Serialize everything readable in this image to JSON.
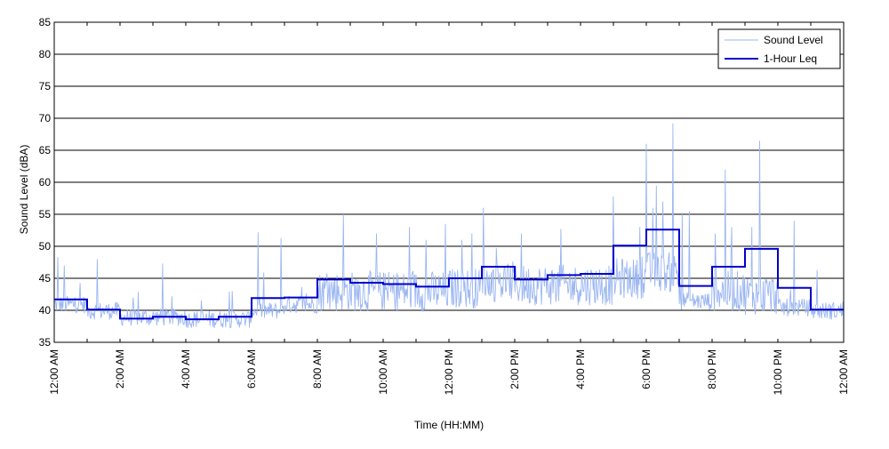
{
  "chart_data": {
    "type": "line",
    "xlabel": "Time (HH:MM)",
    "ylabel": "Sound Level (dBA)",
    "xlim": [
      0,
      24
    ],
    "ylim": [
      35,
      85
    ],
    "y_ticks": [
      35,
      40,
      45,
      50,
      55,
      60,
      65,
      70,
      75,
      80,
      85
    ],
    "x_tick_labels": [
      "12:00 AM",
      "2:00 AM",
      "4:00 AM",
      "6:00 AM",
      "8:00 AM",
      "10:00 AM",
      "12:00 PM",
      "2:00 PM",
      "4:00 PM",
      "6:00 PM",
      "8:00 PM",
      "10:00 PM",
      "12:00 AM"
    ],
    "grid": "horizontal",
    "legend_position": "top-right",
    "colors": {
      "sound_level": "#9bb6f2",
      "leq": "#0000cc",
      "grid": "#000000"
    },
    "series": [
      {
        "name": "Sound Level",
        "style": "thin-line",
        "hours": [
          0,
          1,
          2,
          3,
          4,
          5,
          6,
          7,
          8,
          9,
          10,
          11,
          12,
          13,
          14,
          15,
          16,
          17,
          18,
          19,
          20,
          21,
          22,
          23
        ],
        "baseline_dBA": [
          40.5,
          39.5,
          38.5,
          38.5,
          38.2,
          38.2,
          39.5,
          40.5,
          42,
          42,
          42,
          42,
          42.5,
          43.5,
          43,
          43,
          43,
          44,
          45,
          41,
          42,
          41.5,
          40,
          39.5
        ],
        "peak_dBA": [
          [
            0.1,
            48.3
          ],
          [
            0.3,
            47
          ],
          [
            1.3,
            48
          ],
          [
            2.4,
            42
          ],
          [
            3.3,
            47.3
          ],
          [
            5.4,
            43
          ],
          [
            6.2,
            52.2
          ],
          [
            6.9,
            51.3
          ],
          [
            8.8,
            55
          ],
          [
            9.8,
            52
          ],
          [
            10.8,
            53
          ],
          [
            11.3,
            51
          ],
          [
            11.9,
            53.5
          ],
          [
            12.4,
            51
          ],
          [
            12.7,
            52
          ],
          [
            13.05,
            56
          ],
          [
            14.2,
            52
          ],
          [
            15.4,
            52.7
          ],
          [
            17.0,
            57.8
          ],
          [
            17.8,
            53
          ],
          [
            18.0,
            66
          ],
          [
            18.2,
            56
          ],
          [
            18.3,
            59.5
          ],
          [
            18.5,
            57
          ],
          [
            18.8,
            69.2
          ],
          [
            19.1,
            55
          ],
          [
            19.3,
            55.5
          ],
          [
            20.1,
            52
          ],
          [
            20.4,
            62
          ],
          [
            20.6,
            53
          ],
          [
            21.2,
            53
          ],
          [
            21.45,
            66.5
          ],
          [
            22.5,
            54
          ],
          [
            23.2,
            46.3
          ]
        ]
      },
      {
        "name": "1-Hour Leq",
        "style": "step",
        "hours": [
          0,
          1,
          2,
          3,
          4,
          5,
          6,
          7,
          8,
          9,
          10,
          11,
          12,
          13,
          14,
          15,
          16,
          17,
          18,
          19,
          20,
          21,
          22,
          23
        ],
        "values": [
          41.7,
          40.1,
          38.7,
          39.0,
          38.6,
          39.0,
          41.9,
          42.0,
          44.8,
          44.3,
          44.1,
          43.7,
          45.0,
          46.8,
          44.8,
          45.5,
          45.7,
          50.1,
          52.6,
          43.8,
          46.8,
          49.6,
          43.5,
          40.1
        ]
      }
    ]
  }
}
